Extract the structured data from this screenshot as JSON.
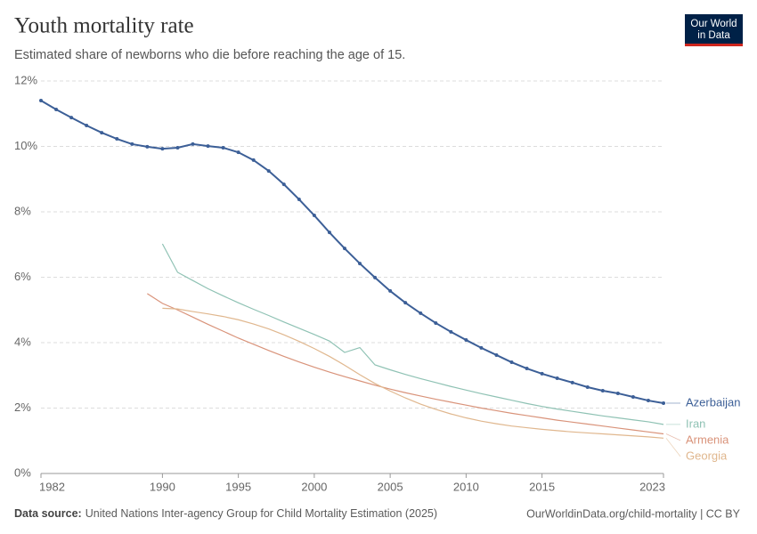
{
  "logo": [
    "Our World",
    "in Data"
  ],
  "footer": {
    "source_label": "Data source:",
    "source": "United Nations Inter-agency Group for Child Mortality Estimation (2025)",
    "link": "OurWorldinData.org/child-mortality | CC BY"
  },
  "chart_data": {
    "type": "line",
    "title": "Youth mortality rate",
    "subtitle": "Estimated share of newborns who die before reaching the age of 15.",
    "x": [
      1982,
      1983,
      1984,
      1985,
      1986,
      1987,
      1988,
      1989,
      1990,
      1991,
      1992,
      1993,
      1994,
      1995,
      1996,
      1997,
      1998,
      1999,
      2000,
      2001,
      2002,
      2003,
      2004,
      2005,
      2006,
      2007,
      2008,
      2009,
      2010,
      2011,
      2012,
      2013,
      2014,
      2015,
      2016,
      2017,
      2018,
      2019,
      2020,
      2021,
      2022,
      2023
    ],
    "xlim": [
      1982,
      2023
    ],
    "xticks": [
      1982,
      1990,
      1995,
      2000,
      2005,
      2010,
      2015,
      2023
    ],
    "ylim": [
      0,
      12
    ],
    "yticks": [
      {
        "value": 0,
        "label": "0%"
      },
      {
        "value": 2,
        "label": "2%"
      },
      {
        "value": 4,
        "label": "4%"
      },
      {
        "value": 6,
        "label": "6%"
      },
      {
        "value": 8,
        "label": "8%"
      },
      {
        "value": 10,
        "label": "10%"
      },
      {
        "value": 12,
        "label": "12%"
      }
    ],
    "grid": true,
    "series": [
      {
        "name": "Azerbaijan",
        "color": "#3c5f97",
        "marker": true,
        "values": [
          11.4,
          11.13,
          10.88,
          10.64,
          10.42,
          10.23,
          10.07,
          9.99,
          9.93,
          9.96,
          10.07,
          10.01,
          9.96,
          9.82,
          9.58,
          9.25,
          8.84,
          8.38,
          7.89,
          7.37,
          6.88,
          6.42,
          5.99,
          5.58,
          5.22,
          4.9,
          4.6,
          4.33,
          4.08,
          3.84,
          3.62,
          3.4,
          3.21,
          3.05,
          2.91,
          2.78,
          2.64,
          2.53,
          2.45,
          2.34,
          2.23,
          2.15
        ]
      },
      {
        "name": "Iran",
        "color": "#8fc2b4",
        "marker": false,
        "values": [
          null,
          null,
          null,
          null,
          null,
          null,
          null,
          null,
          7.02,
          6.15,
          5.9,
          5.65,
          5.43,
          5.22,
          5.02,
          4.83,
          4.63,
          4.44,
          4.25,
          4.05,
          3.7,
          3.85,
          3.32,
          3.17,
          3.03,
          2.9,
          2.78,
          2.66,
          2.55,
          2.44,
          2.34,
          2.24,
          2.14,
          2.05,
          1.97,
          1.9,
          1.83,
          1.76,
          1.7,
          1.64,
          1.58,
          1.5
        ]
      },
      {
        "name": "Armenia",
        "color": "#d9937a",
        "marker": false,
        "values": [
          null,
          null,
          null,
          null,
          null,
          null,
          null,
          5.5,
          5.2,
          5.0,
          4.78,
          4.56,
          4.35,
          4.14,
          3.95,
          3.76,
          3.58,
          3.41,
          3.25,
          3.1,
          2.96,
          2.83,
          2.7,
          2.58,
          2.47,
          2.37,
          2.27,
          2.18,
          2.09,
          2.0,
          1.92,
          1.84,
          1.77,
          1.7,
          1.63,
          1.57,
          1.51,
          1.45,
          1.39,
          1.33,
          1.27,
          1.21
        ]
      },
      {
        "name": "Georgia",
        "color": "#e0b78e",
        "marker": false,
        "values": [
          null,
          null,
          null,
          null,
          null,
          null,
          null,
          null,
          5.05,
          5.03,
          4.95,
          4.88,
          4.8,
          4.7,
          4.57,
          4.42,
          4.24,
          4.04,
          3.82,
          3.58,
          3.31,
          3.02,
          2.75,
          2.52,
          2.31,
          2.12,
          1.96,
          1.82,
          1.7,
          1.6,
          1.52,
          1.45,
          1.4,
          1.35,
          1.31,
          1.27,
          1.24,
          1.21,
          1.18,
          1.15,
          1.12,
          1.08
        ]
      }
    ]
  }
}
